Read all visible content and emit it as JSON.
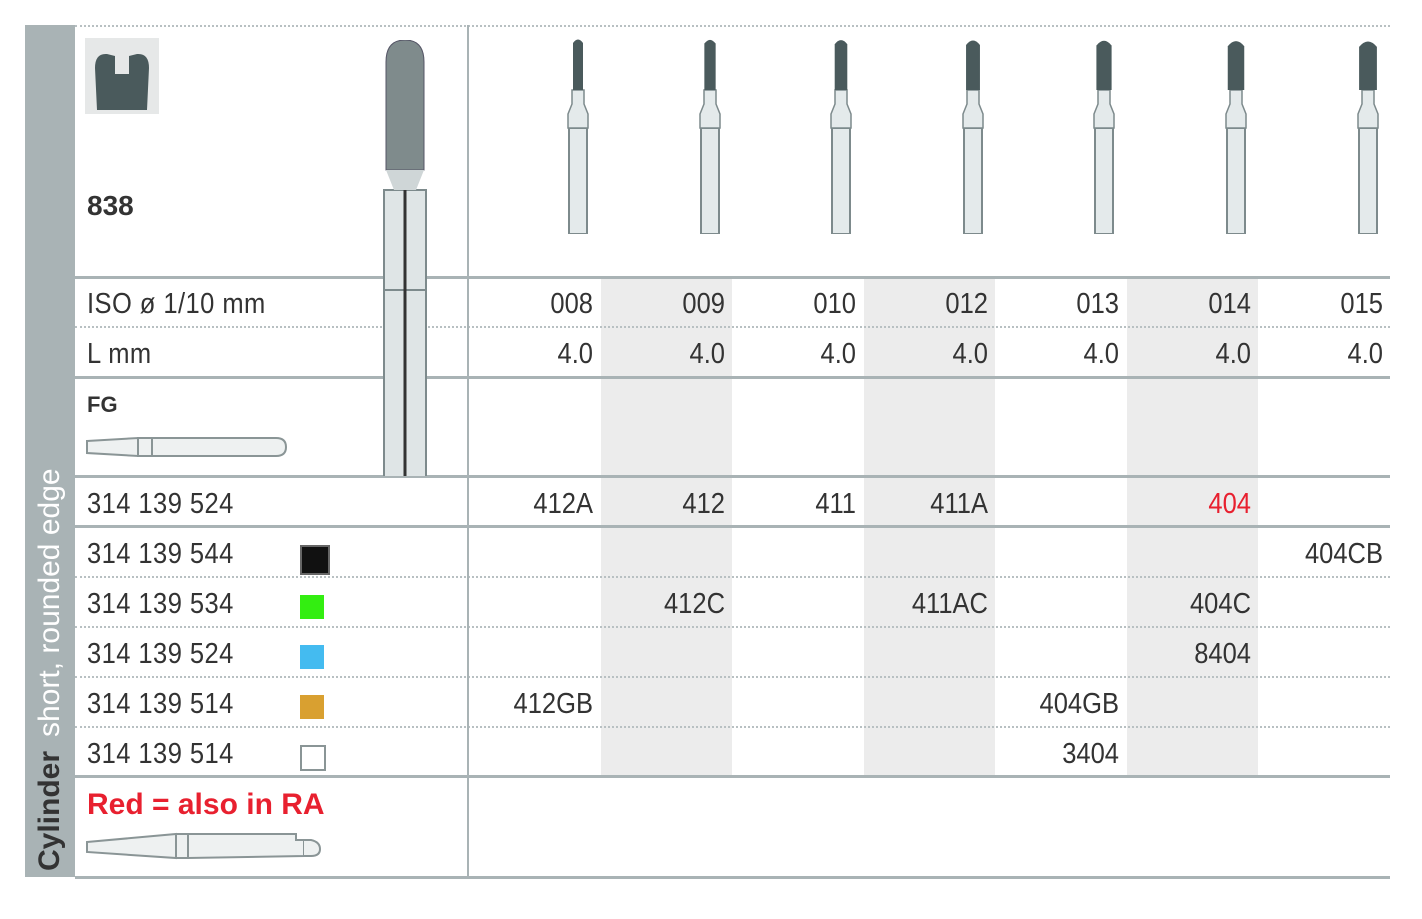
{
  "sidebar": {
    "category": "Cylinder",
    "subtitle": "short, rounded edge"
  },
  "figure_number": "838",
  "labels": {
    "iso": "ISO ø 1/10 mm",
    "length": "L mm",
    "shank": "FG",
    "note": "Red = also in RA"
  },
  "columns": [
    {
      "iso": "008",
      "length": "4.0"
    },
    {
      "iso": "009",
      "length": "4.0"
    },
    {
      "iso": "010",
      "length": "4.0"
    },
    {
      "iso": "012",
      "length": "4.0"
    },
    {
      "iso": "013",
      "length": "4.0"
    },
    {
      "iso": "014",
      "length": "4.0"
    },
    {
      "iso": "015",
      "length": "4.0"
    }
  ],
  "shaded_columns": [
    1,
    3,
    5
  ],
  "rows": [
    {
      "code": "314 139 524",
      "swatch": null,
      "cells": [
        "412A",
        "412",
        "411",
        "411A",
        "",
        "404",
        ""
      ],
      "red_cells": [
        5
      ]
    },
    {
      "code": "314 139 544",
      "swatch": "#111111",
      "cells": [
        "",
        "",
        "",
        "",
        "",
        "",
        "404CB"
      ],
      "red_cells": []
    },
    {
      "code": "314 139 534",
      "swatch": "#33ee11",
      "cells": [
        "",
        "412C",
        "",
        "411AC",
        "",
        "404C",
        ""
      ],
      "red_cells": []
    },
    {
      "code": "314 139 524",
      "swatch": "#44bbf0",
      "cells": [
        "",
        "",
        "",
        "",
        "",
        "8404",
        ""
      ],
      "red_cells": []
    },
    {
      "code": "314 139 514",
      "swatch": "#d9a030",
      "cells": [
        "412GB",
        "",
        "",
        "",
        "404GB",
        "",
        ""
      ],
      "red_cells": []
    },
    {
      "code": "314 139 514",
      "swatch": "#ffffff",
      "cells": [
        "",
        "",
        "",
        "",
        "3404",
        "",
        ""
      ],
      "red_cells": []
    }
  ],
  "colors": {
    "sidebar": "#a9b3b5",
    "red": "#e8202f",
    "shade": "#ececec",
    "bur_head": "#4a5a5c"
  }
}
